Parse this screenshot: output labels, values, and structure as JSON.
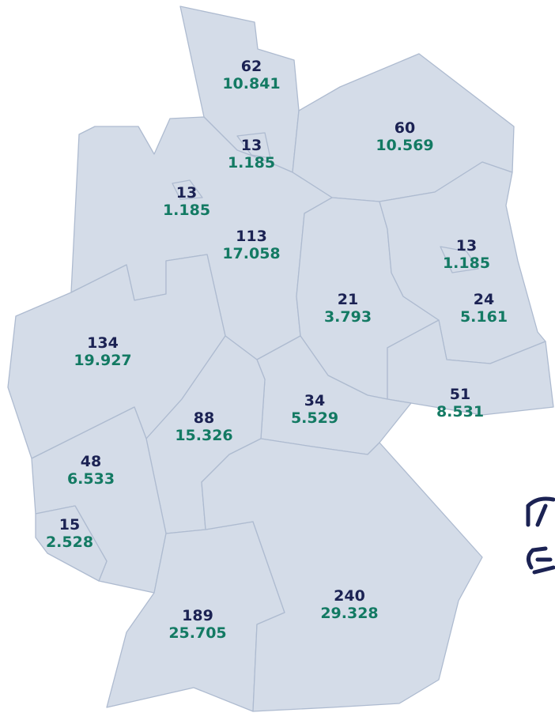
{
  "regions": [
    {
      "count": "62",
      "value": "10.841"
    },
    {
      "count": "60",
      "value": "10.569"
    },
    {
      "count": "13",
      "value": "1.185"
    },
    {
      "count": "13",
      "value": "1.185"
    },
    {
      "count": "113",
      "value": "17.058"
    },
    {
      "count": "13",
      "value": "1.185"
    },
    {
      "count": "21",
      "value": "3.793"
    },
    {
      "count": "24",
      "value": "5.161"
    },
    {
      "count": "134",
      "value": "19.927"
    },
    {
      "count": "88",
      "value": "15.326"
    },
    {
      "count": "34",
      "value": "5.529"
    },
    {
      "count": "51",
      "value": "8.531"
    },
    {
      "count": "48",
      "value": "6.533"
    },
    {
      "count": "15",
      "value": "2.528"
    },
    {
      "count": "240",
      "value": "29.328"
    },
    {
      "count": "189",
      "value": "25.705"
    }
  ]
}
